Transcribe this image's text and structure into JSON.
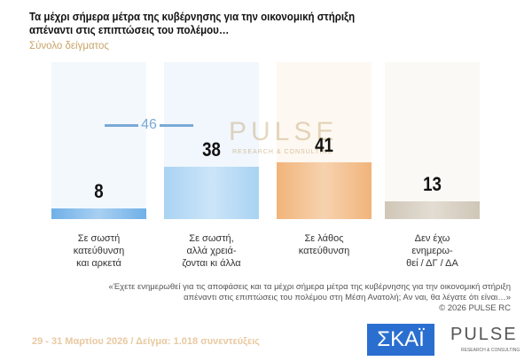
{
  "title_lines": [
    "Τα μέχρι σήμερα μέτρα της κυβέρνησης για την οικονομική στήριξη",
    "απέναντι στις επιπτώσεις του πολέμου…"
  ],
  "subtitle": "Σύνολο δείγματος",
  "chart_data": {
    "type": "bar",
    "categories": [
      [
        "Σε σωστή",
        "κατεύθυνση",
        "και αρκετά"
      ],
      [
        "Σε σωστή,",
        "αλλά χρειά-",
        "ζονται κι άλλα"
      ],
      [
        "Σε λάθος",
        "κατεύθυνση"
      ],
      [
        "Δεν έχω",
        "ενημερω-",
        "θεί / ΔΓ / ΔΑ"
      ]
    ],
    "values": [
      8,
      38,
      41,
      13
    ],
    "colors": [
      "#6fb0e8",
      "#a9d3f3",
      "#f1b47a",
      "#cfc6b6"
    ],
    "reference": {
      "label": "46",
      "color": "#7aa9d6"
    },
    "ylim": [
      0,
      100
    ]
  },
  "question": [
    "«Έχετε ενημερωθεί για τις αποφάσεις και τα μέχρι σήμερα  μέτρα της κυβέρνησης για την οικονομική στήριξη",
    "απέναντι στις επιπτώσεις του πολέμου στη Μέση Ανατολή; Αν ναι, θα λέγατε ότι είναι…»"
  ],
  "copyright": "© 2026  PULSE RC",
  "footer": "29 - 31  Μαρτίου 2026  /  Δείγμα:  1.018 συνεντεύξεις",
  "logos": {
    "skai": "ΣΚΑΪ",
    "pulse": "PULSE",
    "pulse_sub": "RESEARCH & CONSULTING",
    "watermark": "PULSE",
    "watermark_sub": "RESEARCH & CONSULTING"
  }
}
